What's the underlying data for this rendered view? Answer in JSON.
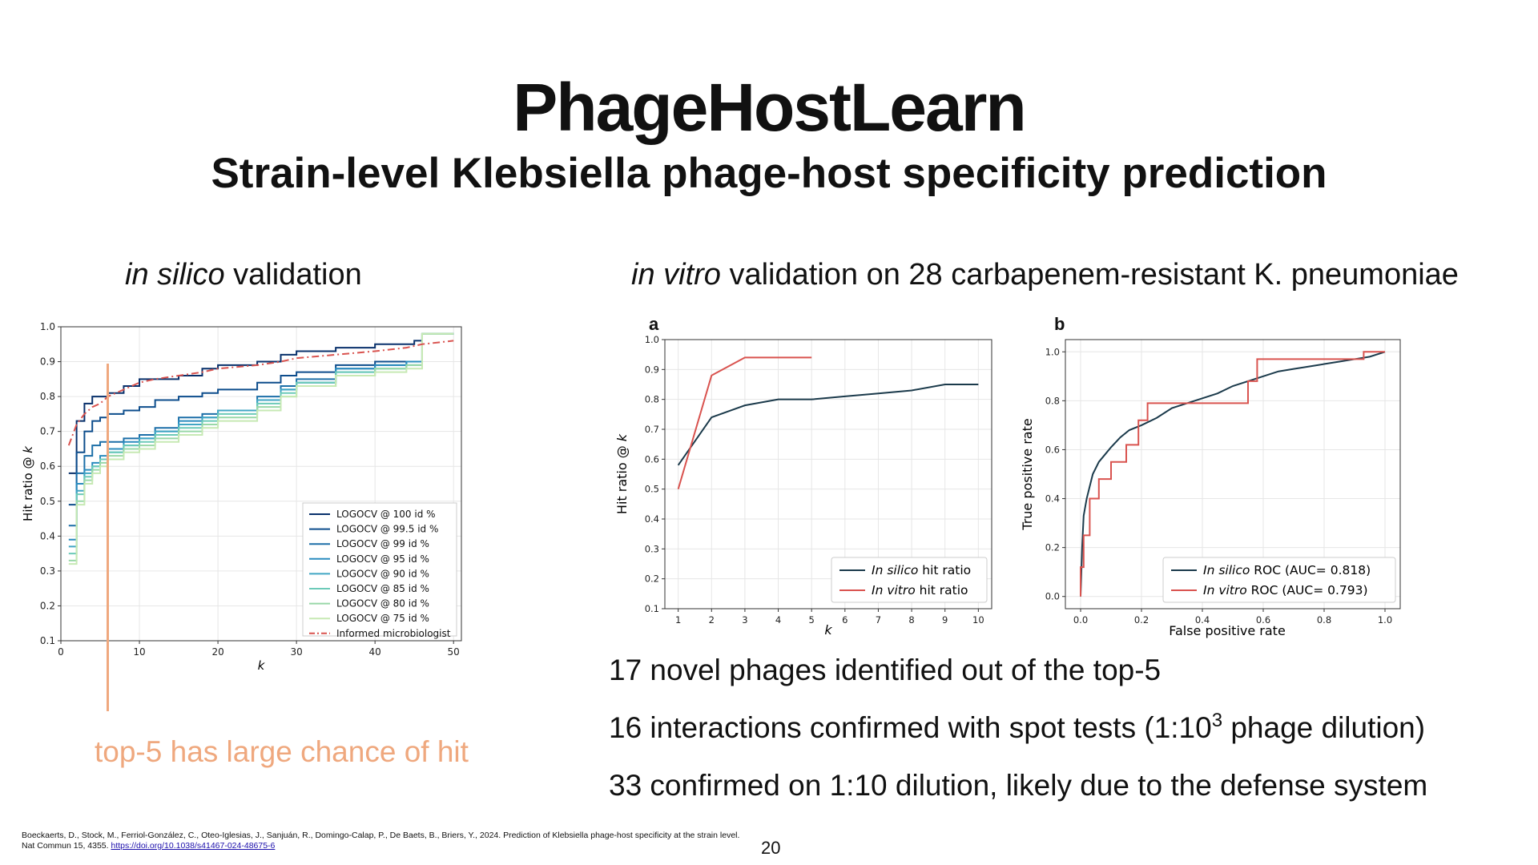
{
  "slide": {
    "title": "PhageHostLearn",
    "subtitle": "Strain-level Klebsiella phage-host specificity prediction",
    "left_heading": {
      "italic": "in silico",
      "rest": " validation"
    },
    "right_heading": {
      "italic": "in vitro",
      "rest": " validation on 28 carbapenem-resistant K. pneumoniae"
    },
    "callout": "top-5 has large chance of hit",
    "bullets": [
      {
        "text": "17 novel phages identified out of the top-5"
      },
      {
        "text_before": "16 interactions confirmed with spot tests (1:10",
        "sup": "3",
        "text_after": " phage dilution)"
      },
      {
        "text": "33 confirmed on 1:10 dilution, likely due to the defense system"
      }
    ],
    "citation": "Boeckaerts, D., Stock, M., Ferriol-González, C., Oteo-Iglesias, J., Sanjuán, R., Domingo-Calap, P., De Baets, B., Briers, Y., 2024. Prediction of Klebsiella phage-host specificity at the strain level. Nat Commun 15, 4355. ",
    "citation_link": "https://doi.org/10.1038/s41467-024-48675-6",
    "page_number": "20"
  },
  "colors": {
    "callout": "#efa87e",
    "in_silico": "#1b3a4b",
    "in_vitro": "#d9534f",
    "informed": "#d9534f"
  },
  "chart_data": [
    {
      "type": "line",
      "ylabel": "Hit ratio @ k",
      "xlabel": "k",
      "xlim": [
        0,
        51
      ],
      "ylim": [
        0.1,
        1.0
      ],
      "xticks": [
        0,
        10,
        20,
        30,
        40,
        50
      ],
      "yticks": [
        0.1,
        0.2,
        0.3,
        0.4,
        0.5,
        0.6,
        0.7,
        0.8,
        0.9,
        1.0
      ],
      "grid": true,
      "legend_position": "lower-right",
      "series": [
        {
          "name": "LOGOCV @ 100 id %",
          "color": "#08306b",
          "style": "solid",
          "x": [
            1,
            2,
            3,
            4,
            5,
            6,
            8,
            10,
            12,
            15,
            18,
            20,
            25,
            28,
            30,
            35,
            40,
            45,
            46,
            50
          ],
          "y": [
            0.58,
            0.73,
            0.78,
            0.8,
            0.8,
            0.81,
            0.83,
            0.85,
            0.85,
            0.86,
            0.88,
            0.89,
            0.9,
            0.92,
            0.93,
            0.94,
            0.95,
            0.96,
            0.98,
            0.98
          ]
        },
        {
          "name": "LOGOCV @ 99.5 id %",
          "color": "#0d4d8c",
          "style": "solid",
          "x": [
            1,
            2,
            3,
            4,
            5,
            6,
            8,
            10,
            12,
            15,
            18,
            20,
            25,
            28,
            30,
            35,
            40,
            44,
            46,
            50
          ],
          "y": [
            0.49,
            0.64,
            0.7,
            0.73,
            0.74,
            0.75,
            0.76,
            0.77,
            0.79,
            0.8,
            0.81,
            0.82,
            0.84,
            0.86,
            0.87,
            0.89,
            0.9,
            0.9,
            0.98,
            0.98
          ]
        },
        {
          "name": "LOGOCV @ 99 id %",
          "color": "#1c6fa8",
          "style": "solid",
          "x": [
            1,
            2,
            3,
            4,
            5,
            6,
            8,
            10,
            12,
            15,
            18,
            20,
            25,
            28,
            30,
            35,
            40,
            44,
            46,
            50
          ],
          "y": [
            0.43,
            0.58,
            0.63,
            0.66,
            0.67,
            0.67,
            0.68,
            0.69,
            0.71,
            0.74,
            0.75,
            0.76,
            0.8,
            0.83,
            0.85,
            0.88,
            0.89,
            0.9,
            0.98,
            0.98
          ]
        },
        {
          "name": "LOGOCV @ 95 id %",
          "color": "#2a8cbf",
          "style": "solid",
          "x": [
            1,
            2,
            3,
            4,
            5,
            6,
            8,
            10,
            12,
            15,
            18,
            20,
            25,
            28,
            30,
            35,
            40,
            44,
            46,
            50
          ],
          "y": [
            0.39,
            0.55,
            0.59,
            0.61,
            0.63,
            0.65,
            0.67,
            0.68,
            0.7,
            0.73,
            0.74,
            0.76,
            0.79,
            0.82,
            0.84,
            0.88,
            0.89,
            0.9,
            0.98,
            0.98
          ]
        },
        {
          "name": "LOGOCV @ 90 id %",
          "color": "#41a6c4",
          "style": "solid",
          "x": [
            1,
            2,
            3,
            4,
            5,
            6,
            8,
            10,
            12,
            15,
            18,
            20,
            25,
            28,
            30,
            35,
            40,
            44,
            46,
            50
          ],
          "y": [
            0.37,
            0.53,
            0.58,
            0.6,
            0.62,
            0.64,
            0.66,
            0.68,
            0.7,
            0.72,
            0.74,
            0.76,
            0.79,
            0.82,
            0.84,
            0.87,
            0.88,
            0.89,
            0.98,
            0.98
          ]
        },
        {
          "name": "LOGOCV @ 85 id %",
          "color": "#6ccab8",
          "style": "solid",
          "x": [
            1,
            2,
            3,
            4,
            5,
            6,
            8,
            10,
            12,
            15,
            18,
            20,
            25,
            28,
            30,
            35,
            40,
            44,
            46,
            50
          ],
          "y": [
            0.35,
            0.52,
            0.57,
            0.6,
            0.62,
            0.64,
            0.66,
            0.67,
            0.69,
            0.71,
            0.73,
            0.75,
            0.78,
            0.81,
            0.84,
            0.87,
            0.88,
            0.89,
            0.98,
            0.98
          ]
        },
        {
          "name": "LOGOCV @ 80 id %",
          "color": "#99d8a8",
          "style": "solid",
          "x": [
            1,
            2,
            3,
            4,
            5,
            6,
            8,
            10,
            12,
            15,
            18,
            20,
            25,
            28,
            30,
            35,
            40,
            44,
            46,
            50
          ],
          "y": [
            0.33,
            0.5,
            0.56,
            0.59,
            0.61,
            0.63,
            0.65,
            0.66,
            0.68,
            0.7,
            0.72,
            0.74,
            0.77,
            0.8,
            0.83,
            0.86,
            0.88,
            0.89,
            0.98,
            0.98
          ]
        },
        {
          "name": "LOGOCV @ 75 id %",
          "color": "#c7e9b4",
          "style": "solid",
          "x": [
            1,
            2,
            3,
            4,
            5,
            6,
            8,
            10,
            12,
            15,
            18,
            20,
            25,
            28,
            30,
            35,
            40,
            44,
            46,
            50
          ],
          "y": [
            0.32,
            0.49,
            0.55,
            0.58,
            0.6,
            0.62,
            0.64,
            0.65,
            0.67,
            0.69,
            0.71,
            0.73,
            0.76,
            0.8,
            0.83,
            0.86,
            0.87,
            0.88,
            0.98,
            0.98
          ]
        },
        {
          "name": "Informed microbiologist",
          "color": "#d9534f",
          "style": "dashdot",
          "x": [
            1,
            2,
            3,
            4,
            5,
            6,
            8,
            10,
            12,
            15,
            18,
            20,
            25,
            28,
            30,
            35,
            40,
            44,
            46,
            50
          ],
          "y": [
            0.66,
            0.72,
            0.75,
            0.77,
            0.78,
            0.8,
            0.82,
            0.84,
            0.85,
            0.86,
            0.87,
            0.88,
            0.89,
            0.9,
            0.91,
            0.92,
            0.93,
            0.94,
            0.95,
            0.96
          ]
        }
      ]
    },
    {
      "panel_label": "a",
      "type": "line",
      "ylabel": "Hit ratio @ k",
      "xlabel": "k",
      "xlim": [
        0.6,
        10.4
      ],
      "ylim": [
        0.1,
        1.0
      ],
      "xticks": [
        1,
        2,
        3,
        4,
        5,
        6,
        7,
        8,
        9,
        10
      ],
      "yticks": [
        0.1,
        0.2,
        0.3,
        0.4,
        0.5,
        0.6,
        0.7,
        0.8,
        0.9,
        1.0
      ],
      "grid": true,
      "legend_position": "lower-right",
      "series": [
        {
          "name_italic": "In silico",
          "name_rest": " hit ratio",
          "color": "#1b3a4b",
          "x": [
            1,
            2,
            3,
            4,
            5,
            6,
            7,
            8,
            9,
            10
          ],
          "y": [
            0.58,
            0.74,
            0.78,
            0.8,
            0.8,
            0.81,
            0.82,
            0.83,
            0.85,
            0.85
          ]
        },
        {
          "name_italic": "In vitro",
          "name_rest": " hit ratio",
          "color": "#d9534f",
          "x": [
            1,
            2,
            3,
            4,
            5
          ],
          "y": [
            0.5,
            0.88,
            0.94,
            0.94,
            0.94
          ]
        }
      ]
    },
    {
      "panel_label": "b",
      "type": "line",
      "xlabel": "False positive rate",
      "ylabel": "True positive rate",
      "xlim": [
        -0.05,
        1.05
      ],
      "ylim": [
        -0.05,
        1.05
      ],
      "xticks": [
        0.0,
        0.2,
        0.4,
        0.6,
        0.8,
        1.0
      ],
      "yticks": [
        0.0,
        0.2,
        0.4,
        0.6,
        0.8,
        1.0
      ],
      "grid": true,
      "legend_position": "lower-right",
      "series": [
        {
          "name_italic": "In silico",
          "name_rest": " ROC (AUC= 0.818)",
          "color": "#1b3a4b",
          "style": "smooth",
          "x": [
            0,
            0.005,
            0.01,
            0.02,
            0.03,
            0.04,
            0.06,
            0.08,
            0.1,
            0.13,
            0.16,
            0.2,
            0.25,
            0.3,
            0.35,
            0.4,
            0.45,
            0.5,
            0.55,
            0.6,
            0.65,
            0.7,
            0.75,
            0.8,
            0.85,
            0.9,
            0.95,
            1.0
          ],
          "y": [
            0,
            0.2,
            0.33,
            0.4,
            0.45,
            0.5,
            0.55,
            0.58,
            0.61,
            0.65,
            0.68,
            0.7,
            0.73,
            0.77,
            0.79,
            0.81,
            0.83,
            0.86,
            0.88,
            0.9,
            0.92,
            0.93,
            0.94,
            0.95,
            0.96,
            0.97,
            0.98,
            1.0
          ]
        },
        {
          "name_italic": "In vitro",
          "name_rest": " ROC (AUC= 0.793)",
          "color": "#d9534f",
          "style": "step",
          "x": [
            0,
            0,
            0.01,
            0.01,
            0.03,
            0.03,
            0.06,
            0.06,
            0.1,
            0.1,
            0.15,
            0.15,
            0.19,
            0.19,
            0.22,
            0.22,
            0.38,
            0.38,
            0.55,
            0.55,
            0.58,
            0.58,
            0.93,
            0.93,
            1.0
          ],
          "y": [
            0,
            0.12,
            0.12,
            0.25,
            0.25,
            0.4,
            0.4,
            0.48,
            0.48,
            0.55,
            0.55,
            0.62,
            0.62,
            0.72,
            0.72,
            0.79,
            0.79,
            0.79,
            0.79,
            0.88,
            0.88,
            0.97,
            0.97,
            1.0,
            1.0
          ]
        }
      ]
    }
  ]
}
